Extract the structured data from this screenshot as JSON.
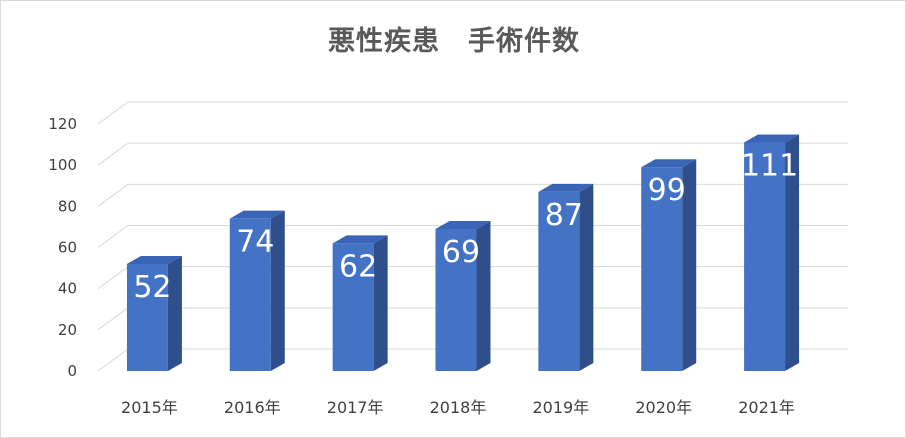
{
  "chart_data": {
    "type": "bar",
    "title": "悪性疾患　手術件数",
    "categories": [
      "2015年",
      "2016年",
      "2017年",
      "2018年",
      "2019年",
      "2020年",
      "2021年"
    ],
    "values": [
      52,
      74,
      62,
      69,
      87,
      99,
      111
    ],
    "data_labels": [
      "52",
      "74",
      "62",
      "69",
      "87",
      "99",
      "111"
    ],
    "y_ticks": [
      "0",
      "20",
      "40",
      "60",
      "80",
      "100",
      "120"
    ],
    "ylim": [
      0,
      120
    ],
    "grid": true,
    "style": "3d-column",
    "colors": {
      "front": "#4472c4",
      "side": "#2f4f8c",
      "top": "#3a64b5",
      "grid": "#d9d9d9"
    }
  }
}
